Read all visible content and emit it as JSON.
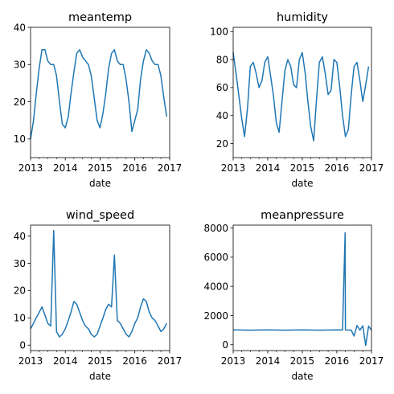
{
  "chart_data": [
    {
      "type": "line",
      "title": "meantemp",
      "xlabel": "date",
      "ylabel": "",
      "xlim": [
        "2013-01-01",
        "2017-01-01"
      ],
      "x_tick_labels": [
        "2013",
        "2014",
        "2015",
        "2016",
        "2017"
      ],
      "ylim": [
        5,
        40
      ],
      "y_ticks": [
        10,
        20,
        30,
        40
      ],
      "y_tick_labels": [
        "10",
        "20",
        "30",
        "40"
      ],
      "color": "#1f77b4",
      "series": [
        {
          "x": [
            "2013-01",
            "2013-02",
            "2013-03",
            "2013-04",
            "2013-05",
            "2013-06",
            "2013-07",
            "2013-08",
            "2013-09",
            "2013-10",
            "2013-11",
            "2013-12",
            "2014-01",
            "2014-02",
            "2014-03",
            "2014-04",
            "2014-05",
            "2014-06",
            "2014-07",
            "2014-08",
            "2014-09",
            "2014-10",
            "2014-11",
            "2014-12",
            "2015-01",
            "2015-02",
            "2015-03",
            "2015-04",
            "2015-05",
            "2015-06",
            "2015-07",
            "2015-08",
            "2015-09",
            "2015-10",
            "2015-11",
            "2015-12",
            "2016-01",
            "2016-02",
            "2016-03",
            "2016-04",
            "2016-05",
            "2016-06",
            "2016-07",
            "2016-08",
            "2016-09",
            "2016-10",
            "2016-11",
            "2016-12"
          ],
          "y": [
            10,
            15,
            22,
            29,
            34,
            34,
            31,
            30,
            30,
            27,
            20,
            14,
            13,
            16,
            22,
            28,
            33,
            34,
            32,
            31,
            30,
            27,
            21,
            15,
            13,
            17,
            22,
            29,
            33,
            34,
            31,
            30,
            30,
            26,
            20,
            12,
            15,
            18,
            26,
            31,
            34,
            33,
            31,
            30,
            30,
            27,
            21,
            16
          ]
        }
      ]
    },
    {
      "type": "line",
      "title": "humidity",
      "xlabel": "date",
      "ylabel": "",
      "xlim": [
        "2013-01-01",
        "2017-01-01"
      ],
      "x_tick_labels": [
        "2013",
        "2014",
        "2015",
        "2016",
        "2017"
      ],
      "ylim": [
        10,
        103
      ],
      "y_ticks": [
        20,
        40,
        60,
        80,
        100
      ],
      "y_tick_labels": [
        "20",
        "40",
        "60",
        "80",
        "100"
      ],
      "color": "#1f77b4",
      "series": [
        {
          "x": [
            "2013-01",
            "2013-02",
            "2013-03",
            "2013-04",
            "2013-05",
            "2013-06",
            "2013-07",
            "2013-08",
            "2013-09",
            "2013-10",
            "2013-11",
            "2013-12",
            "2014-01",
            "2014-02",
            "2014-03",
            "2014-04",
            "2014-05",
            "2014-06",
            "2014-07",
            "2014-08",
            "2014-09",
            "2014-10",
            "2014-11",
            "2014-12",
            "2015-01",
            "2015-02",
            "2015-03",
            "2015-04",
            "2015-05",
            "2015-06",
            "2015-07",
            "2015-08",
            "2015-09",
            "2015-10",
            "2015-11",
            "2015-12",
            "2016-01",
            "2016-02",
            "2016-03",
            "2016-04",
            "2016-05",
            "2016-06",
            "2016-07",
            "2016-08",
            "2016-09",
            "2016-10",
            "2016-11",
            "2016-12"
          ],
          "y": [
            85,
            70,
            55,
            38,
            25,
            45,
            75,
            78,
            70,
            60,
            65,
            78,
            82,
            68,
            55,
            35,
            28,
            50,
            72,
            80,
            75,
            62,
            60,
            80,
            85,
            70,
            50,
            32,
            22,
            52,
            78,
            82,
            70,
            55,
            58,
            80,
            78,
            60,
            40,
            25,
            30,
            55,
            75,
            78,
            65,
            50,
            62,
            75
          ]
        }
      ]
    },
    {
      "type": "line",
      "title": "wind_speed",
      "xlabel": "date",
      "ylabel": "",
      "xlim": [
        "2013-01-01",
        "2017-01-01"
      ],
      "x_tick_labels": [
        "2013",
        "2014",
        "2015",
        "2016",
        "2017"
      ],
      "ylim": [
        -2,
        44
      ],
      "y_ticks": [
        0,
        10,
        20,
        30,
        40
      ],
      "y_tick_labels": [
        "0",
        "10",
        "20",
        "30",
        "40"
      ],
      "color": "#1f77b4",
      "series": [
        {
          "x": [
            "2013-01",
            "2013-02",
            "2013-03",
            "2013-04",
            "2013-05",
            "2013-06",
            "2013-07",
            "2013-08",
            "2013-09",
            "2013-10",
            "2013-11",
            "2013-12",
            "2014-01",
            "2014-02",
            "2014-03",
            "2014-04",
            "2014-05",
            "2014-06",
            "2014-07",
            "2014-08",
            "2014-09",
            "2014-10",
            "2014-11",
            "2014-12",
            "2015-01",
            "2015-02",
            "2015-03",
            "2015-04",
            "2015-05",
            "2015-06",
            "2015-07",
            "2015-08",
            "2015-09",
            "2015-10",
            "2015-11",
            "2015-12",
            "2016-01",
            "2016-02",
            "2016-03",
            "2016-04",
            "2016-05",
            "2016-06",
            "2016-07",
            "2016-08",
            "2016-09",
            "2016-10",
            "2016-11",
            "2016-12"
          ],
          "y": [
            6,
            8,
            10,
            12,
            14,
            11,
            8,
            7,
            42,
            5,
            3,
            4,
            6,
            9,
            12,
            16,
            15,
            12,
            9,
            7,
            6,
            4,
            3,
            4,
            7,
            10,
            13,
            15,
            14,
            33,
            9,
            8,
            6,
            4,
            3,
            5,
            8,
            10,
            14,
            17,
            16,
            12,
            10,
            9,
            7,
            5,
            6,
            8
          ]
        }
      ]
    },
    {
      "type": "line",
      "title": "meanpressure",
      "xlabel": "date",
      "ylabel": "",
      "xlim": [
        "2013-01-01",
        "2017-01-01"
      ],
      "x_tick_labels": [
        "2013",
        "2014",
        "2015",
        "2016",
        "2017"
      ],
      "ylim": [
        -400,
        8200
      ],
      "y_ticks": [
        0,
        2000,
        4000,
        6000,
        8000
      ],
      "y_tick_labels": [
        "0",
        "2000",
        "4000",
        "6000",
        "8000"
      ],
      "color": "#1f77b4",
      "series": [
        {
          "x": [
            "2013-01",
            "2013-07",
            "2014-01",
            "2014-07",
            "2015-01",
            "2015-07",
            "2016-01",
            "2016-03",
            "2016-03-28",
            "2016-04",
            "2016-06",
            "2016-07",
            "2016-08",
            "2016-09",
            "2016-10",
            "2016-11",
            "2016-12",
            "2016-12-31"
          ],
          "y": [
            1015,
            1000,
            1015,
            1000,
            1017,
            1000,
            1015,
            1010,
            7680,
            1010,
            1005,
            600,
            1320,
            1000,
            1300,
            -50,
            1280,
            1010
          ]
        }
      ]
    }
  ]
}
